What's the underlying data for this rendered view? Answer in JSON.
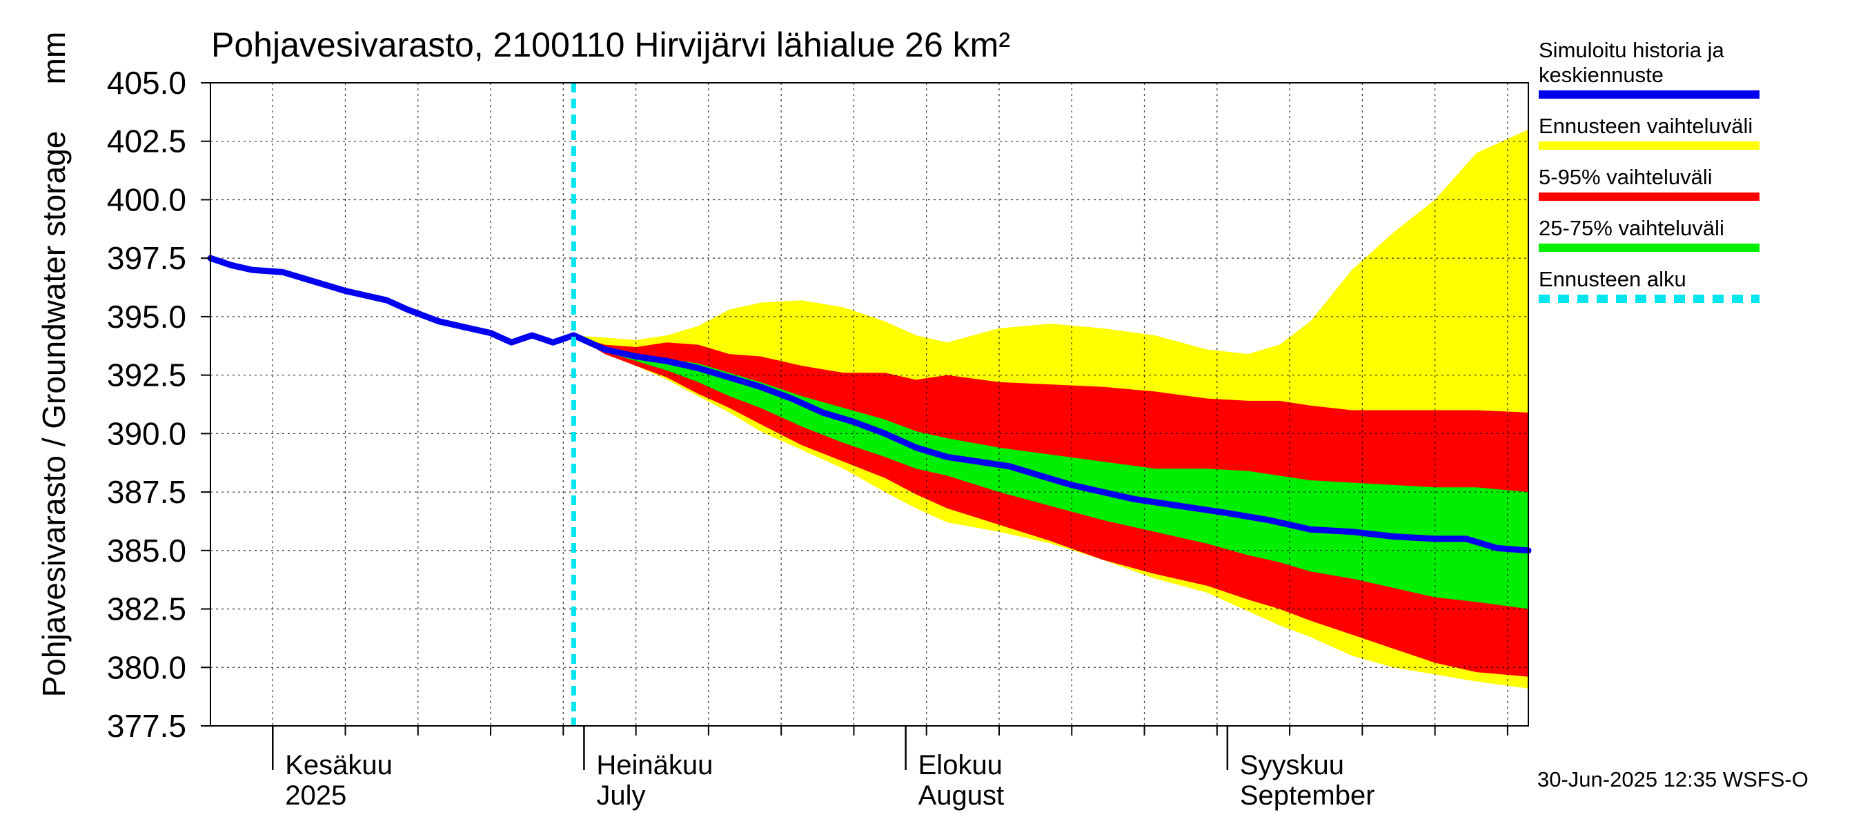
{
  "chart_data": {
    "type": "area",
    "title": "Pohjavesivarasto, 2100110 Hirvijärvi lähialue 26 km²",
    "ylabel": "Pohjavesivarasto / Groundwater storage",
    "yunit": "mm",
    "ylim": [
      377.5,
      405.0
    ],
    "y_ticks": [
      "377.5",
      "380.0",
      "382.5",
      "385.0",
      "387.5",
      "390.0",
      "392.5",
      "395.0",
      "397.5",
      "400.0",
      "402.5",
      "405.0"
    ],
    "x_range": [
      "2025-05-26",
      "2025-09-30"
    ],
    "month_labels": [
      {
        "date": "2025-06-01",
        "line1": "Kesäkuu",
        "line2": "2025"
      },
      {
        "date": "2025-07-01",
        "line1": "Heinäkuu",
        "line2": "July"
      },
      {
        "date": "2025-08-01",
        "line1": "Elokuu",
        "line2": "August"
      },
      {
        "date": "2025-09-01",
        "line1": "Syyskuu",
        "line2": "September"
      }
    ],
    "forecast_start": "2025-06-30",
    "grid": true,
    "legend_position": "right",
    "series": [
      {
        "name": "Simuloitu historia ja keskiennuste",
        "color": "#0000ee",
        "points": [
          [
            "2025-05-26",
            397.5
          ],
          [
            "2025-05-28",
            397.2
          ],
          [
            "2025-05-30",
            397.0
          ],
          [
            "2025-06-02",
            396.9
          ],
          [
            "2025-06-05",
            396.5
          ],
          [
            "2025-06-08",
            396.1
          ],
          [
            "2025-06-10",
            395.9
          ],
          [
            "2025-06-12",
            395.7
          ],
          [
            "2025-06-14",
            395.3
          ],
          [
            "2025-06-17",
            394.8
          ],
          [
            "2025-06-20",
            394.5
          ],
          [
            "2025-06-22",
            394.3
          ],
          [
            "2025-06-24",
            393.9
          ],
          [
            "2025-06-26",
            394.2
          ],
          [
            "2025-06-28",
            393.9
          ],
          [
            "2025-06-30",
            394.2
          ],
          [
            "2025-07-03",
            393.6
          ],
          [
            "2025-07-06",
            393.3
          ],
          [
            "2025-07-09",
            393.1
          ],
          [
            "2025-07-12",
            392.8
          ],
          [
            "2025-07-15",
            392.4
          ],
          [
            "2025-07-18",
            392.0
          ],
          [
            "2025-07-21",
            391.5
          ],
          [
            "2025-07-24",
            390.9
          ],
          [
            "2025-07-27",
            390.5
          ],
          [
            "2025-07-30",
            390.0
          ],
          [
            "2025-08-02",
            389.4
          ],
          [
            "2025-08-05",
            389.0
          ],
          [
            "2025-08-08",
            388.8
          ],
          [
            "2025-08-11",
            388.6
          ],
          [
            "2025-08-14",
            388.2
          ],
          [
            "2025-08-17",
            387.8
          ],
          [
            "2025-08-20",
            387.5
          ],
          [
            "2025-08-23",
            387.2
          ],
          [
            "2025-08-26",
            387.0
          ],
          [
            "2025-08-29",
            386.8
          ],
          [
            "2025-09-01",
            386.6
          ],
          [
            "2025-09-05",
            386.3
          ],
          [
            "2025-09-09",
            385.9
          ],
          [
            "2025-09-13",
            385.8
          ],
          [
            "2025-09-17",
            385.6
          ],
          [
            "2025-09-21",
            385.5
          ],
          [
            "2025-09-24",
            385.5
          ],
          [
            "2025-09-27",
            385.1
          ],
          [
            "2025-09-30",
            385.0
          ]
        ]
      },
      {
        "name": "Ennusteen vaihteluväli",
        "color": "#ffff00",
        "dates": [
          "2025-06-30",
          "2025-07-03",
          "2025-07-06",
          "2025-07-09",
          "2025-07-12",
          "2025-07-15",
          "2025-07-18",
          "2025-07-22",
          "2025-07-26",
          "2025-07-30",
          "2025-08-02",
          "2025-08-05",
          "2025-08-10",
          "2025-08-15",
          "2025-08-20",
          "2025-08-25",
          "2025-08-30",
          "2025-09-03",
          "2025-09-06",
          "2025-09-09",
          "2025-09-13",
          "2025-09-17",
          "2025-09-21",
          "2025-09-25",
          "2025-09-30"
        ],
        "upper": [
          394.2,
          394.1,
          394.0,
          394.2,
          394.6,
          395.3,
          395.6,
          395.7,
          395.4,
          394.8,
          394.2,
          393.9,
          394.5,
          394.7,
          394.5,
          394.2,
          393.6,
          393.4,
          393.8,
          394.8,
          397.0,
          398.6,
          400.0,
          402.0,
          403.0
        ],
        "lower": [
          394.2,
          393.4,
          392.9,
          392.3,
          391.6,
          390.9,
          390.1,
          389.3,
          388.5,
          387.5,
          386.8,
          386.2,
          385.8,
          385.3,
          384.6,
          383.8,
          383.2,
          382.4,
          381.8,
          381.3,
          380.5,
          380.0,
          379.7,
          379.4,
          379.1
        ]
      },
      {
        "name": "5-95% vaihteluväli",
        "color": "#ff0000",
        "dates": [
          "2025-06-30",
          "2025-07-03",
          "2025-07-06",
          "2025-07-09",
          "2025-07-12",
          "2025-07-15",
          "2025-07-18",
          "2025-07-22",
          "2025-07-26",
          "2025-07-30",
          "2025-08-02",
          "2025-08-05",
          "2025-08-10",
          "2025-08-15",
          "2025-08-20",
          "2025-08-25",
          "2025-08-30",
          "2025-09-03",
          "2025-09-06",
          "2025-09-09",
          "2025-09-13",
          "2025-09-17",
          "2025-09-21",
          "2025-09-25",
          "2025-09-30"
        ],
        "upper": [
          394.2,
          393.8,
          393.7,
          393.9,
          393.8,
          393.4,
          393.3,
          392.9,
          392.6,
          392.6,
          392.3,
          392.5,
          392.2,
          392.1,
          392.0,
          391.8,
          391.5,
          391.4,
          391.4,
          391.2,
          391.0,
          391.0,
          391.0,
          391.0,
          390.9
        ],
        "lower": [
          394.2,
          393.4,
          392.9,
          392.4,
          391.7,
          391.1,
          390.4,
          389.5,
          388.8,
          388.1,
          387.4,
          386.8,
          386.1,
          385.4,
          384.6,
          384.0,
          383.5,
          382.9,
          382.5,
          382.0,
          381.4,
          380.8,
          380.2,
          379.8,
          379.6
        ]
      },
      {
        "name": "25-75% vaihteluväli",
        "color": "#00ee00",
        "dates": [
          "2025-06-30",
          "2025-07-03",
          "2025-07-06",
          "2025-07-09",
          "2025-07-12",
          "2025-07-15",
          "2025-07-18",
          "2025-07-22",
          "2025-07-26",
          "2025-07-30",
          "2025-08-02",
          "2025-08-05",
          "2025-08-10",
          "2025-08-15",
          "2025-08-20",
          "2025-08-25",
          "2025-08-30",
          "2025-09-03",
          "2025-09-06",
          "2025-09-09",
          "2025-09-13",
          "2025-09-17",
          "2025-09-21",
          "2025-09-25",
          "2025-09-30"
        ],
        "upper": [
          394.2,
          393.7,
          393.4,
          393.2,
          393.0,
          392.6,
          392.2,
          391.6,
          391.1,
          390.6,
          390.1,
          389.8,
          389.4,
          389.1,
          388.8,
          388.5,
          388.5,
          388.4,
          388.2,
          388.0,
          387.9,
          387.8,
          387.7,
          387.7,
          387.5
        ],
        "lower": [
          394.2,
          393.5,
          393.1,
          392.7,
          392.2,
          391.6,
          391.1,
          390.3,
          389.6,
          389.0,
          388.5,
          388.2,
          387.5,
          386.9,
          386.3,
          385.8,
          385.3,
          384.8,
          384.5,
          384.1,
          383.8,
          383.4,
          383.0,
          382.8,
          382.5
        ]
      },
      {
        "name": "Ennusteen alku",
        "color": "#00e5ee",
        "style": "dashed"
      }
    ]
  },
  "legend": [
    {
      "label": "Simuloitu historia ja keskiennuste",
      "lines": [
        "Simuloitu historia ja",
        "keskiennuste"
      ],
      "color": "#0000ee",
      "style": "solid"
    },
    {
      "label": "Ennusteen vaihteluväli",
      "lines": [
        "Ennusteen vaihteluväli"
      ],
      "color": "#ffff00",
      "style": "solid"
    },
    {
      "label": "5-95% vaihteluväli",
      "lines": [
        "5-95% vaihteluväli"
      ],
      "color": "#ff0000",
      "style": "solid"
    },
    {
      "label": "25-75% vaihteluväli",
      "lines": [
        "25-75% vaihteluväli"
      ],
      "color": "#00ee00",
      "style": "solid"
    },
    {
      "label": "Ennusteen alku",
      "lines": [
        "Ennusteen alku"
      ],
      "color": "#00e5ee",
      "style": "dashed"
    }
  ],
  "footer": "30-Jun-2025 12:35 WSFS-O"
}
